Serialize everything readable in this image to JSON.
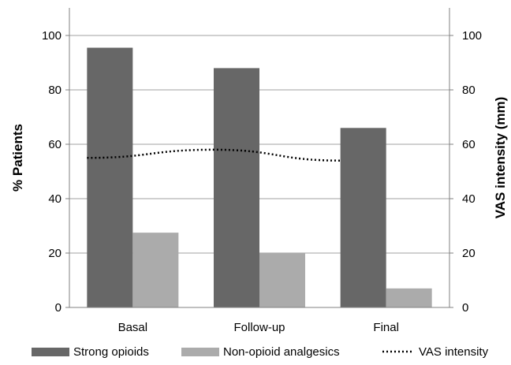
{
  "chart_data": {
    "type": "bar",
    "categories": [
      "Basal",
      "Follow-up",
      "Final"
    ],
    "series": [
      {
        "name": "Strong opioids",
        "values": [
          95.5,
          88,
          66
        ],
        "color": "#676767",
        "axis": "left"
      },
      {
        "name": "Non-opioid analgesics",
        "values": [
          27.5,
          20,
          7
        ],
        "color": "#ababab",
        "axis": "left"
      }
    ],
    "line_series": [
      {
        "name": "VAS intensity",
        "values": [
          55,
          58,
          54
        ],
        "color": "#000000",
        "style": "dotted",
        "axis": "right"
      }
    ],
    "ylabel": "% Patients",
    "y2label": "VAS intensity (mm)",
    "ylim": [
      0,
      100
    ],
    "y2lim": [
      0,
      100
    ],
    "yticks": [
      "0",
      "20",
      "40",
      "60",
      "80",
      "100"
    ],
    "y2ticks": [
      "0",
      "20",
      "40",
      "60",
      "80",
      "100"
    ],
    "grid": true,
    "legend_position": "bottom"
  }
}
